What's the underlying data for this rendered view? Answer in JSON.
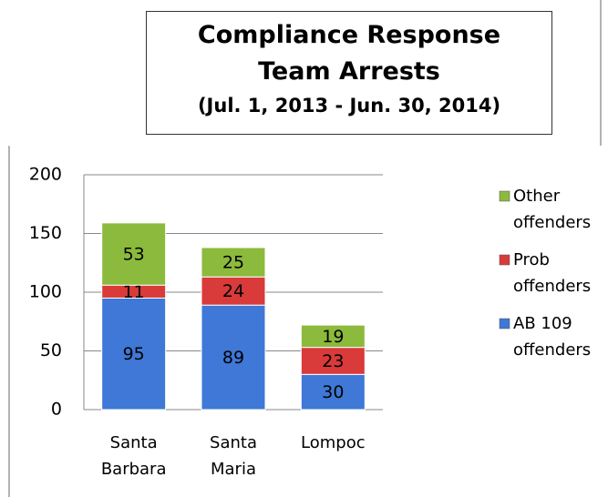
{
  "chart_data": {
    "type": "stacked_bar",
    "title": "Compliance Response Team Arrests",
    "subtitle": "(Jul. 1, 2013 - Jun. 30, 2014)",
    "categories": [
      "Santa Barbara",
      "Santa Maria",
      "Lompoc"
    ],
    "series": [
      {
        "name": "AB 109 offenders",
        "color": "#3f78d6",
        "values": [
          95,
          89,
          30
        ]
      },
      {
        "name": "Prob offenders",
        "color": "#d93a3a",
        "values": [
          11,
          24,
          23
        ]
      },
      {
        "name": "Other offenders",
        "color": "#8cba3c",
        "values": [
          53,
          25,
          19
        ]
      }
    ],
    "ylim": [
      0,
      200
    ],
    "yticks": [
      0,
      50,
      100,
      150,
      200
    ],
    "grid": true,
    "legend": "right"
  }
}
